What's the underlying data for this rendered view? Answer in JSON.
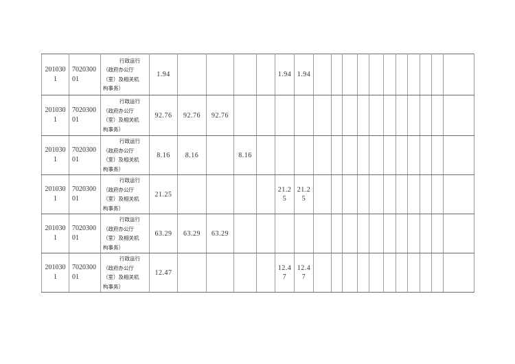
{
  "page": {
    "background_color": "#ffffff"
  },
  "colors": {
    "text": "#303030",
    "grid_vertical": "#9a9a9a",
    "grid_horizontal": "#6a6a6a",
    "page_background": "#ffffff"
  },
  "table": {
    "rows": [
      {
        "function_code": "201030\n1",
        "program_code": "7020300\n01",
        "item_name": "行政运行\n（政府办公厅\n（室）及相关机\n构事务）",
        "amounts": [
          "1.94",
          "",
          "",
          "",
          "",
          "1.94",
          "1.94",
          "",
          "",
          "",
          "",
          "",
          "",
          "",
          "",
          "",
          "",
          ""
        ]
      },
      {
        "function_code": "201030\n1",
        "program_code": "7020300\n01",
        "item_name": "行政运行\n（政府办公厅\n（室）及相关机\n构事务）",
        "amounts": [
          "92.76",
          "92.76",
          "92.76",
          "",
          "",
          "",
          "",
          "",
          "",
          "",
          "",
          "",
          "",
          "",
          "",
          "",
          "",
          ""
        ]
      },
      {
        "function_code": "201030\n1",
        "program_code": "7020300\n01",
        "item_name": "行政运行\n（政府办公厅\n（室）及相关机\n构事务）",
        "amounts": [
          "8.16",
          "8.16",
          "",
          "8.16",
          "",
          "",
          "",
          "",
          "",
          "",
          "",
          "",
          "",
          "",
          "",
          "",
          "",
          ""
        ]
      },
      {
        "function_code": "201030\n1",
        "program_code": "7020300\n01",
        "item_name": "行政运行\n（政府办公厅\n（室）及相关机\n构事务）",
        "amounts": [
          "21.25",
          "",
          "",
          "",
          "",
          "21.2\n5",
          "21.2\n5",
          "",
          "",
          "",
          "",
          "",
          "",
          "",
          "",
          "",
          "",
          ""
        ]
      },
      {
        "function_code": "201030\n1",
        "program_code": "7020300\n01",
        "item_name": "行政运行\n（政府办公厅\n（室）及相关机\n构事务）",
        "amounts": [
          "63.29",
          "63.29",
          "63.29",
          "",
          "",
          "",
          "",
          "",
          "",
          "",
          "",
          "",
          "",
          "",
          "",
          "",
          "",
          ""
        ]
      },
      {
        "function_code": "201030\n1",
        "program_code": "7020300\n01",
        "item_name": "行政运行\n（政府办公厅\n（室）及相关机\n构事务）",
        "amounts": [
          "12.47",
          "",
          "",
          "",
          "",
          "12.4\n7",
          "12.4\n7",
          "",
          "",
          "",
          "",
          "",
          "",
          "",
          "",
          "",
          "",
          ""
        ]
      }
    ]
  }
}
